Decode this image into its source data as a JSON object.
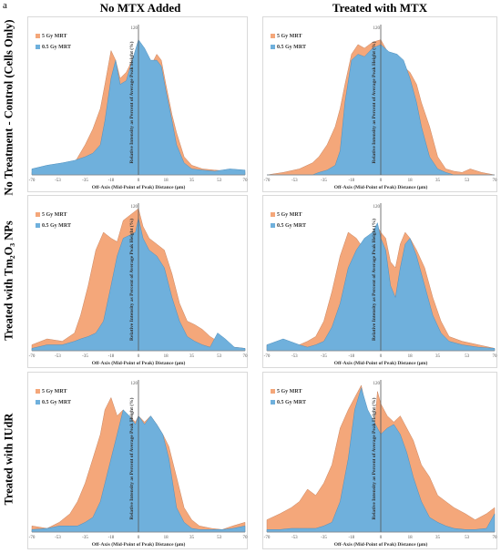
{
  "figure_label": "a",
  "columns": [
    "No MTX Added",
    "Treated with MTX"
  ],
  "rows": [
    "No Treatment - Control (Cells Only)",
    "Treated with Tm₂O₃ NPs",
    "Treated with IUdR"
  ],
  "colors": {
    "orange": "#F4A77A",
    "blue": "#6FB0DC",
    "axis": "#8c8c8c"
  },
  "chart_data": [
    {
      "type": "area",
      "title": "",
      "column": "No MTX Added",
      "row": "No Treatment - Control (Cells Only)",
      "xlabel": "Off-Axis (Mid-Point of Peak) Distance (µm)",
      "ylabel": "Relative Intensity as Percent of Average Peak Height (%)",
      "xlim": [
        -70,
        70
      ],
      "ylim": [
        0,
        120
      ],
      "xticks": [
        -70,
        -53,
        -35,
        -18,
        0,
        18,
        35,
        53,
        70
      ],
      "yticks": [
        120
      ],
      "legend": "top-left",
      "x": [
        -70,
        -60,
        -50,
        -42,
        -35,
        -30,
        -25,
        -22,
        -18,
        -15,
        -12,
        -8,
        -4,
        0,
        4,
        8,
        12,
        15,
        18,
        22,
        25,
        30,
        35,
        42,
        50,
        60,
        70
      ],
      "series": [
        {
          "name": "5 Gy MRT",
          "values": [
            2,
            3,
            5,
            10,
            25,
            38,
            55,
            75,
            103,
            95,
            80,
            85,
            95,
            110,
            100,
            90,
            100,
            95,
            75,
            50,
            35,
            15,
            8,
            5,
            4,
            3,
            2
          ]
        },
        {
          "name": "0.5 Gy MRT",
          "values": [
            5,
            8,
            10,
            12,
            15,
            18,
            25,
            45,
            80,
            95,
            75,
            78,
            95,
            112,
            105,
            95,
            95,
            90,
            70,
            45,
            25,
            10,
            5,
            4,
            3,
            5,
            4
          ]
        }
      ]
    },
    {
      "type": "area",
      "title": "",
      "column": "Treated with MTX",
      "row": "No Treatment - Control (Cells Only)",
      "xlabel": "Off-Axis (Mid-Point of Peak) Distance (µm)",
      "ylabel": "Relative Intensity as Percent of Average Peak Height (%)",
      "xlim": [
        -70,
        70
      ],
      "ylim": [
        0,
        120
      ],
      "xticks": [
        -70,
        -53,
        -35,
        -18,
        0,
        18,
        35,
        53,
        70
      ],
      "yticks": [
        120
      ],
      "legend": "top-left",
      "x": [
        -70,
        -60,
        -50,
        -42,
        -38,
        -33,
        -28,
        -25,
        -22,
        -18,
        -14,
        -10,
        -5,
        0,
        5,
        10,
        14,
        18,
        22,
        25,
        30,
        35,
        40,
        45,
        50,
        55,
        62,
        70
      ],
      "series": [
        {
          "name": "5 Gy MRT",
          "values": [
            0,
            2,
            5,
            10,
            15,
            25,
            40,
            55,
            75,
            100,
            108,
            105,
            110,
            112,
            100,
            95,
            90,
            85,
            75,
            60,
            40,
            15,
            5,
            3,
            2,
            5,
            2,
            0
          ]
        },
        {
          "name": "0.5 Gy MRT",
          "values": [
            0,
            0,
            0,
            0,
            2,
            4,
            8,
            20,
            60,
            95,
            100,
            98,
            105,
            108,
            102,
            100,
            95,
            80,
            60,
            40,
            15,
            5,
            2,
            0,
            0,
            0,
            0,
            0
          ]
        }
      ]
    },
    {
      "type": "area",
      "title": "",
      "column": "No MTX Added",
      "row": "Treated with Tm₂O₃ NPs",
      "xlabel": "Off-Axis (Mid-Point of Peak) Distance (µm)",
      "ylabel": "Relative Intensity as Percent of Average Peak Height (%)",
      "xlim": [
        -70,
        70
      ],
      "ylim": [
        0,
        120
      ],
      "xticks": [
        -70,
        -53,
        -35,
        -18,
        0,
        18,
        35,
        53,
        70
      ],
      "yticks": [
        120
      ],
      "legend": "top-left",
      "x": [
        -70,
        -60,
        -50,
        -42,
        -38,
        -33,
        -28,
        -23,
        -18,
        -14,
        -10,
        -5,
        -2,
        0,
        3,
        7,
        12,
        17,
        22,
        27,
        32,
        37,
        42,
        47,
        52,
        57,
        63,
        70
      ],
      "series": [
        {
          "name": "5 Gy MRT",
          "values": [
            5,
            10,
            8,
            15,
            30,
            55,
            85,
            100,
            95,
            92,
            110,
            115,
            118,
            120,
            105,
            95,
            90,
            85,
            65,
            40,
            25,
            22,
            18,
            12,
            8,
            6,
            3,
            2
          ]
        },
        {
          "name": "0.5 Gy MRT",
          "values": [
            2,
            5,
            5,
            8,
            10,
            12,
            15,
            25,
            55,
            80,
            95,
            98,
            100,
            112,
            95,
            85,
            80,
            70,
            45,
            25,
            12,
            8,
            5,
            3,
            15,
            10,
            3,
            2
          ]
        }
      ]
    },
    {
      "type": "area",
      "title": "",
      "column": "Treated with MTX",
      "row": "Treated with Tm₂O₃ NPs",
      "xlabel": "Off-Axis (Mid-Point of Peak) Distance (µm)",
      "ylabel": "Relative Intensity as Percent of Average Peak Height (%)",
      "xlim": [
        -70,
        70
      ],
      "ylim": [
        0,
        120
      ],
      "xticks": [
        -70,
        -53,
        -35,
        -18,
        0,
        18,
        35,
        53,
        70
      ],
      "yticks": [
        120
      ],
      "legend": "top-left",
      "x": [
        -70,
        -60,
        -50,
        -45,
        -40,
        -35,
        -30,
        -25,
        -20,
        -15,
        -10,
        -5,
        -2,
        0,
        3,
        6,
        9,
        12,
        15,
        18,
        22,
        27,
        32,
        37,
        42,
        50,
        60,
        70
      ],
      "series": [
        {
          "name": "5 Gy MRT",
          "values": [
            5,
            8,
            5,
            8,
            12,
            25,
            50,
            80,
            100,
            95,
            85,
            100,
            105,
            100,
            95,
            75,
            70,
            90,
            100,
            95,
            85,
            70,
            45,
            25,
            12,
            8,
            5,
            2
          ]
        },
        {
          "name": "0.5 Gy MRT",
          "values": [
            5,
            10,
            5,
            3,
            5,
            8,
            20,
            40,
            70,
            85,
            95,
            100,
            108,
            95,
            85,
            55,
            45,
            70,
            90,
            95,
            80,
            55,
            30,
            15,
            8,
            5,
            3,
            2
          ]
        }
      ]
    },
    {
      "type": "area",
      "title": "",
      "column": "No MTX Added",
      "row": "Treated with IUdR",
      "xlabel": "Off-Axis (Mid-Point of Peak) Distance (µm)",
      "ylabel": "Relative Intensity as Percent of Average Peak Height (%)",
      "xlim": [
        -70,
        70
      ],
      "ylim": [
        0,
        120
      ],
      "xticks": [
        -70,
        -53,
        -35,
        -18,
        0,
        18,
        35,
        53,
        70
      ],
      "yticks": [
        120
      ],
      "legend": "top-left",
      "x": [
        -70,
        -60,
        -52,
        -45,
        -40,
        -35,
        -30,
        -25,
        -22,
        -18,
        -14,
        -10,
        -6,
        -2,
        0,
        4,
        8,
        12,
        16,
        20,
        25,
        30,
        35,
        40,
        48,
        55,
        62,
        70
      ],
      "series": [
        {
          "name": "5 Gy MRT",
          "values": [
            5,
            3,
            8,
            15,
            25,
            40,
            60,
            80,
            100,
            110,
            95,
            100,
            95,
            90,
            95,
            90,
            95,
            88,
            80,
            70,
            45,
            20,
            10,
            5,
            3,
            2,
            5,
            8
          ]
        },
        {
          "name": "0.5 Gy MRT",
          "values": [
            2,
            3,
            5,
            5,
            5,
            8,
            12,
            25,
            40,
            60,
            80,
            100,
            95,
            88,
            95,
            88,
            95,
            88,
            80,
            60,
            20,
            8,
            3,
            2,
            2,
            2,
            3,
            5
          ]
        }
      ]
    },
    {
      "type": "area",
      "title": "",
      "column": "Treated with MTX",
      "row": "Treated with IUdR",
      "xlabel": "Off-Axis (Mid-Point of Peak) Distance (µm)",
      "ylabel": "Relative Intensity as Percent of Average Peak Height (%)",
      "xlim": [
        -70,
        70
      ],
      "ylim": [
        0,
        120
      ],
      "xticks": [
        -70,
        -53,
        -35,
        -18,
        0,
        18,
        35,
        53,
        70
      ],
      "yticks": [
        120
      ],
      "legend": "top-left",
      "x": [
        -70,
        -62,
        -55,
        -50,
        -45,
        -40,
        -35,
        -30,
        -25,
        -20,
        -16,
        -12,
        -8,
        -4,
        -2,
        0,
        4,
        8,
        12,
        16,
        20,
        25,
        30,
        35,
        40,
        45,
        52,
        58,
        65,
        70
      ],
      "series": [
        {
          "name": "5 Gy MRT",
          "values": [
            10,
            15,
            20,
            25,
            35,
            30,
            40,
            55,
            85,
            100,
            110,
            120,
            95,
            85,
            115,
            105,
            95,
            90,
            95,
            85,
            75,
            55,
            45,
            30,
            25,
            20,
            15,
            10,
            15,
            20
          ]
        },
        {
          "name": "0.5 Gy MRT",
          "values": [
            2,
            2,
            3,
            3,
            3,
            3,
            5,
            8,
            25,
            60,
            100,
            118,
            100,
            90,
            85,
            80,
            85,
            88,
            80,
            65,
            45,
            25,
            12,
            8,
            5,
            3,
            2,
            2,
            3,
            15
          ]
        }
      ]
    }
  ]
}
